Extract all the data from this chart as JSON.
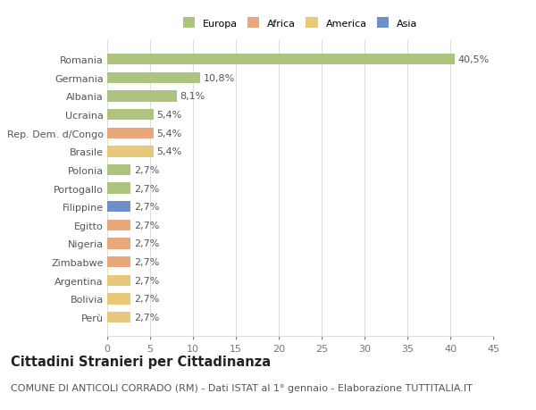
{
  "countries": [
    "Romania",
    "Germania",
    "Albania",
    "Ucraina",
    "Rep. Dem. d/Congo",
    "Brasile",
    "Polonia",
    "Portogallo",
    "Filippine",
    "Egitto",
    "Nigeria",
    "Zimbabwe",
    "Argentina",
    "Bolivia",
    "Perù"
  ],
  "values": [
    40.5,
    10.8,
    8.1,
    5.4,
    5.4,
    5.4,
    2.7,
    2.7,
    2.7,
    2.7,
    2.7,
    2.7,
    2.7,
    2.7,
    2.7
  ],
  "labels": [
    "40,5%",
    "10,8%",
    "8,1%",
    "5,4%",
    "5,4%",
    "5,4%",
    "2,7%",
    "2,7%",
    "2,7%",
    "2,7%",
    "2,7%",
    "2,7%",
    "2,7%",
    "2,7%",
    "2,7%"
  ],
  "colors": [
    "#adc47e",
    "#adc47e",
    "#adc47e",
    "#adc47e",
    "#e8a87c",
    "#e8c97c",
    "#adc47e",
    "#adc47e",
    "#6e8fc7",
    "#e8a87c",
    "#e8a87c",
    "#e8a87c",
    "#e8c97c",
    "#e8c97c",
    "#e8c97c"
  ],
  "legend_labels": [
    "Europa",
    "Africa",
    "America",
    "Asia"
  ],
  "legend_colors": [
    "#adc47e",
    "#e8a87c",
    "#e8c97c",
    "#6e8fc7"
  ],
  "title": "Cittadini Stranieri per Cittadinanza",
  "subtitle": "COMUNE DI ANTICOLI CORRADO (RM) - Dati ISTAT al 1° gennaio - Elaborazione TUTTITALIA.IT",
  "xlim": [
    0,
    45
  ],
  "xticks": [
    0,
    5,
    10,
    15,
    20,
    25,
    30,
    35,
    40,
    45
  ],
  "bg_color": "#ffffff",
  "grid_color": "#dddddd",
  "bar_height": 0.6,
  "label_fontsize": 8,
  "tick_fontsize": 8,
  "title_fontsize": 10.5,
  "subtitle_fontsize": 8
}
